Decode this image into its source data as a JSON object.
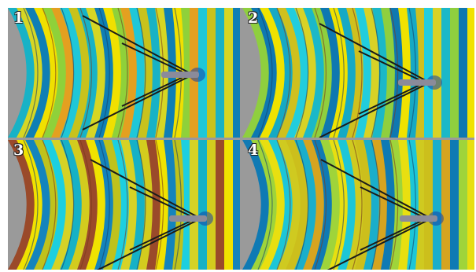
{
  "panels": [
    {
      "label": "1",
      "colors": [
        "#18b2c6",
        "#d6d624",
        "#0f7fb4",
        "#f0e000",
        "#8fd13a",
        "#e4a020",
        "#1fc7d8",
        "#c8c21c"
      ]
    },
    {
      "label": "2",
      "colors": [
        "#1bb8c8",
        "#8fcf3e",
        "#0e78b0",
        "#f0e200",
        "#16a9c4",
        "#cfc01e",
        "#22cddd",
        "#d8d226"
      ]
    },
    {
      "label": "3",
      "colors": [
        "#16b1c6",
        "#d3cc1e",
        "#9a4a2a",
        "#f0e200",
        "#1484bc",
        "#bfc21c",
        "#1ccfe0",
        "#d6d226"
      ]
    },
    {
      "label": "4",
      "colors": [
        "#ccbf1c",
        "#1aaecb",
        "#d6a420",
        "#0f7ab4",
        "#9fd43a",
        "#e8df10",
        "#1cc6d8",
        "#cfca20"
      ]
    }
  ]
}
